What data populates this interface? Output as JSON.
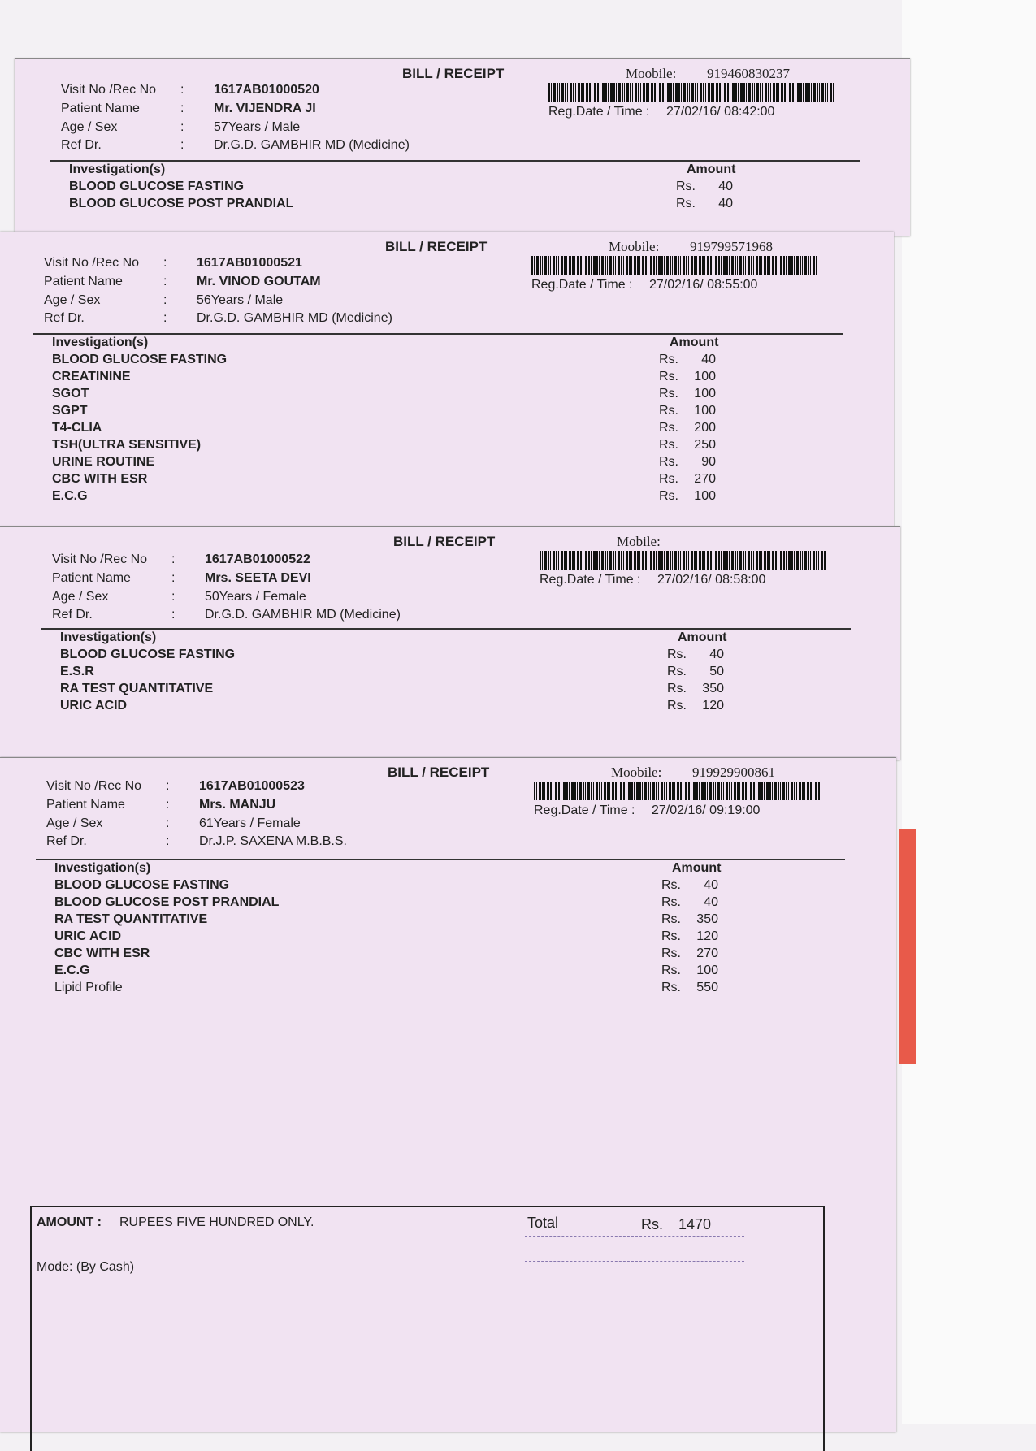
{
  "labels": {
    "title": "BILL / RECEIPT",
    "visit": "Visit No  /Rec No",
    "patient": "Patient Name",
    "age": "Age / Sex",
    "ref": "Ref Dr.",
    "colon": ":",
    "mobile": "Moobile:",
    "mobile_alt": "Mobile:",
    "regdate": "Reg.Date / Time  :",
    "investigations": "Investigation(s)",
    "amount": "Amount",
    "rs": "Rs."
  },
  "receipts": [
    {
      "mobile_label": "Moobile:",
      "mobile": "919460830237",
      "visit_no": "1617AB01000520",
      "patient": "Mr. VIJENDRA JI",
      "age_sex": "57Years  / Male",
      "ref_dr": "Dr.G.D.  GAMBHIR MD (Medicine)",
      "reg": "27/02/16/ 08:42:00",
      "items": [
        {
          "name": "BLOOD GLUCOSE FASTING",
          "amount": "40"
        },
        {
          "name": "BLOOD GLUCOSE POST PRANDIAL",
          "amount": "40"
        }
      ]
    },
    {
      "mobile_label": "Moobile:",
      "mobile": "919799571968",
      "visit_no": "1617AB01000521",
      "patient": "Mr. VINOD GOUTAM",
      "age_sex": "56Years  / Male",
      "ref_dr": "Dr.G.D.  GAMBHIR MD (Medicine)",
      "reg": "27/02/16/ 08:55:00",
      "items": [
        {
          "name": "BLOOD GLUCOSE FASTING",
          "amount": "40"
        },
        {
          "name": "CREATININE",
          "amount": "100"
        },
        {
          "name": "SGOT",
          "amount": "100"
        },
        {
          "name": "SGPT",
          "amount": "100"
        },
        {
          "name": "T4-CLIA",
          "amount": "200"
        },
        {
          "name": "TSH(ULTRA SENSITIVE)",
          "amount": "250"
        },
        {
          "name": "URINE ROUTINE",
          "amount": "90"
        },
        {
          "name": "CBC WITH ESR",
          "amount": "270"
        },
        {
          "name": "E.C.G",
          "amount": "100"
        }
      ]
    },
    {
      "mobile_label": "Mobile:",
      "mobile": "",
      "visit_no": "1617AB01000522",
      "patient": "Mrs. SEETA DEVI",
      "age_sex": "50Years  / Female",
      "ref_dr": "Dr.G.D.  GAMBHIR MD (Medicine)",
      "reg": "27/02/16/ 08:58:00",
      "items": [
        {
          "name": "BLOOD GLUCOSE FASTING",
          "amount": "40"
        },
        {
          "name": "E.S.R",
          "amount": "50"
        },
        {
          "name": "RA TEST QUANTITATIVE",
          "amount": "350"
        },
        {
          "name": "URIC ACID",
          "amount": "120"
        }
      ]
    },
    {
      "mobile_label": "Moobile:",
      "mobile": "919929900861",
      "visit_no": "1617AB01000523",
      "patient": "Mrs. MANJU",
      "age_sex": "61Years  / Female",
      "ref_dr": "Dr.J.P. SAXENA  M.B.B.S.",
      "reg": "27/02/16/ 09:19:00",
      "items": [
        {
          "name": "BLOOD GLUCOSE FASTING",
          "amount": "40"
        },
        {
          "name": "BLOOD GLUCOSE POST PRANDIAL",
          "amount": "40"
        },
        {
          "name": "RA TEST QUANTITATIVE",
          "amount": "350"
        },
        {
          "name": "URIC ACID",
          "amount": "120"
        },
        {
          "name": "CBC WITH ESR",
          "amount": "270"
        },
        {
          "name": "E.C.G",
          "amount": "100"
        },
        {
          "name": "Lipid Profile",
          "amount": "550",
          "plain": true
        }
      ]
    }
  ],
  "footer": {
    "amount_label": "AMOUNT  :",
    "amount_words": "RUPEES FIVE HUNDRED ONLY.",
    "total_label": "Total",
    "rs": "Rs.",
    "total": "1470",
    "mode": "Mode:  (By Cash)"
  }
}
